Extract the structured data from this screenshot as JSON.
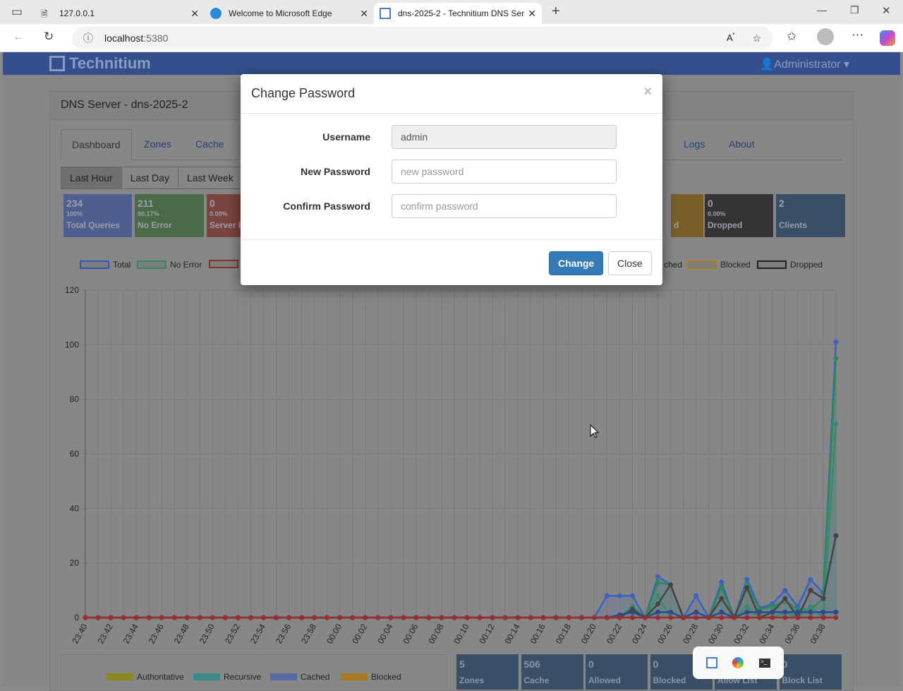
{
  "browser": {
    "tabs": [
      {
        "title": "127.0.0.1"
      },
      {
        "title": "Welcome to Microsoft Edge"
      },
      {
        "title": "dns-2025-2 - Technitium DNS Ser"
      }
    ],
    "url_host": "localhost",
    "url_port": ":5380"
  },
  "app": {
    "brand": "Technitium",
    "user": "Administrator ▾",
    "panel_title": "DNS Server - dns-2025-2",
    "tabs": [
      "Dashboard",
      "Zones",
      "Cache",
      "Logs",
      "About"
    ],
    "ranges": [
      "Last Hour",
      "Last Day",
      "Last Week"
    ],
    "cards": [
      {
        "value": "234",
        "percent": "100%",
        "label": "Total Queries",
        "color": "#4d5e8f"
      },
      {
        "value": "211",
        "percent": "90.17%",
        "label": "No Error",
        "color": "#4a6b48"
      },
      {
        "value": "0",
        "percent": "0.00%",
        "label": "Server F",
        "color": "#7a4440"
      },
      {
        "value": "",
        "percent": "",
        "label": "d",
        "color": "#7a5e28"
      },
      {
        "value": "0",
        "percent": "0.00%",
        "label": "Dropped",
        "color": "#333333"
      },
      {
        "value": "2",
        "percent": "",
        "label": "Clients",
        "color": "#384f66"
      }
    ],
    "legend": [
      {
        "name": "Total",
        "color": "#2f59b8"
      },
      {
        "name": "No Error",
        "color": "#2e8a5a"
      },
      {
        "name": "",
        "color": "#8a2e2e"
      },
      {
        "name": "ched",
        "color": ""
      },
      {
        "name": "Blocked",
        "color": "#a87a22"
      },
      {
        "name": "Dropped",
        "color": "#222222"
      }
    ],
    "bottom_legend": [
      {
        "name": "Authoritative",
        "color": "#8a8a20"
      },
      {
        "name": "Recursive",
        "color": "#3a8a8a"
      },
      {
        "name": "Cached",
        "color": "#5a6aa0"
      },
      {
        "name": "Blocked",
        "color": "#a87a22"
      }
    ],
    "bottom_cards": [
      {
        "value": "5",
        "label": "Zones"
      },
      {
        "value": "506",
        "label": "Cache"
      },
      {
        "value": "0",
        "label": "Allowed"
      },
      {
        "value": "0",
        "label": "Blocked"
      },
      {
        "value": "",
        "label": "Allow List"
      },
      {
        "value": "0",
        "label": "Block List"
      }
    ]
  },
  "modal": {
    "title": "Change Password",
    "close_icon": "×",
    "username_label": "Username",
    "username_value": "admin",
    "new_label": "New Password",
    "new_placeholder": "new password",
    "confirm_label": "Confirm Password",
    "confirm_placeholder": "confirm password",
    "change": "Change",
    "close": "Close"
  },
  "chart_data": {
    "type": "line",
    "x": [
      "23:40",
      "23:41",
      "23:42",
      "23:43",
      "23:44",
      "23:45",
      "23:46",
      "23:47",
      "23:48",
      "23:49",
      "23:50",
      "23:51",
      "23:52",
      "23:53",
      "23:54",
      "23:55",
      "23:56",
      "23:57",
      "23:58",
      "23:59",
      "00:00",
      "00:01",
      "00:02",
      "00:03",
      "00:04",
      "00:05",
      "00:06",
      "00:07",
      "00:08",
      "00:09",
      "00:10",
      "00:11",
      "00:12",
      "00:13",
      "00:14",
      "00:15",
      "00:16",
      "00:17",
      "00:18",
      "00:19",
      "00:20",
      "00:21",
      "00:22",
      "00:23",
      "00:24",
      "00:25",
      "00:26",
      "00:27",
      "00:28",
      "00:29",
      "00:30",
      "00:31",
      "00:32",
      "00:33",
      "00:34",
      "00:35",
      "00:36",
      "00:37",
      "00:38",
      "00:39"
    ],
    "xticks": [
      "23:40",
      "23:42",
      "23:44",
      "23:46",
      "23:48",
      "23:50",
      "23:52",
      "23:54",
      "23:56",
      "23:58",
      "00:00",
      "00:02",
      "00:04",
      "00:06",
      "00:08",
      "00:10",
      "00:12",
      "00:14",
      "00:16",
      "00:18",
      "00:20",
      "00:22",
      "00:24",
      "00:26",
      "00:28",
      "00:30",
      "00:32",
      "00:34",
      "00:36",
      "00:38"
    ],
    "ylim": [
      0,
      120
    ],
    "yticks": [
      0,
      20,
      40,
      60,
      80,
      100,
      120
    ],
    "grid": true,
    "legend": "top",
    "series": [
      {
        "name": "Total",
        "color": "#3a62c0",
        "tail": [
          8,
          8,
          8,
          0,
          15,
          12,
          0,
          8,
          0,
          13,
          0,
          14,
          3.5,
          5,
          10,
          4,
          14,
          9,
          101
        ]
      },
      {
        "name": "No Error",
        "color": "#2e8a5a",
        "tail": [
          0,
          0,
          4,
          0,
          13,
          12,
          0,
          0,
          0,
          11,
          0,
          12,
          3,
          4,
          6,
          3,
          3,
          7,
          95
        ]
      },
      {
        "color": "#3a8a6a",
        "tail": [
          0,
          0,
          0,
          0,
          8,
          0,
          0,
          0,
          0,
          7,
          0,
          4,
          0,
          0,
          2,
          0,
          4,
          0,
          71
        ]
      },
      {
        "color": "#444444",
        "tail": [
          0,
          0,
          3,
          0,
          5,
          12,
          0,
          0,
          0,
          7,
          0,
          11,
          0,
          2,
          7,
          0,
          10,
          7,
          30
        ]
      },
      {
        "color": "#2a4a90",
        "tail": [
          0,
          1,
          2,
          0,
          2,
          2,
          0,
          2,
          0,
          2,
          0,
          2,
          2,
          2,
          2,
          2,
          2,
          2,
          2
        ]
      },
      {
        "color": "#9a2e2e",
        "tail": [
          0,
          0,
          0,
          0,
          0,
          0,
          0,
          0,
          0,
          0,
          0,
          0,
          0,
          0,
          0,
          0,
          0,
          0,
          0
        ]
      }
    ]
  }
}
